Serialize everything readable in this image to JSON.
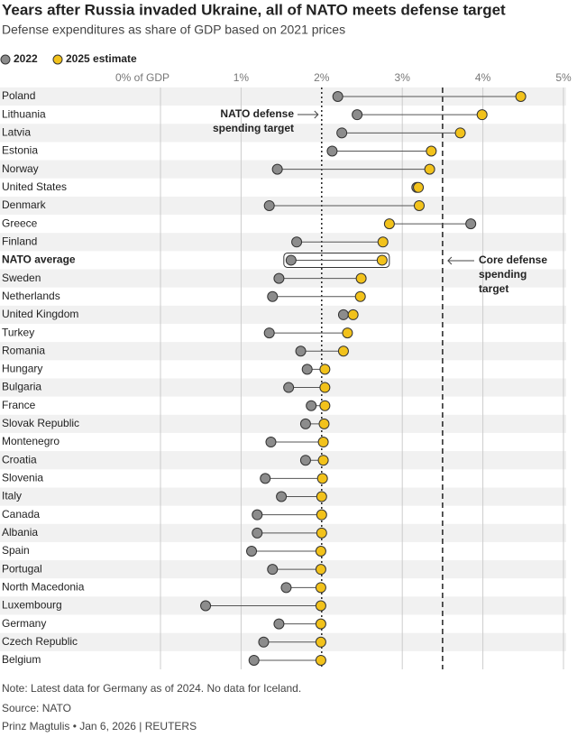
{
  "chart_data": {
    "type": "dumbbell",
    "title": "Years after Russia invaded Ukraine, all of NATO meets defense target",
    "subtitle": "Defense expenditures as share of GDP based on 2021 prices",
    "categories": [
      "Poland",
      "Lithuania",
      "Latvia",
      "Estonia",
      "Norway",
      "United States",
      "Denmark",
      "Greece",
      "Finland",
      "NATO average",
      "Sweden",
      "Netherlands",
      "United Kingdom",
      "Turkey",
      "Romania",
      "Hungary",
      "Bulgaria",
      "France",
      "Slovak Republic",
      "Montenegro",
      "Croatia",
      "Slovenia",
      "Italy",
      "Canada",
      "Albania",
      "Spain",
      "Portugal",
      "North Macedonia",
      "Luxembourg",
      "Germany",
      "Czech Republic",
      "Belgium"
    ],
    "series": [
      {
        "name": "2022",
        "color": "#8c8c8c",
        "values": [
          2.2,
          2.44,
          2.25,
          2.13,
          1.45,
          3.18,
          1.35,
          3.85,
          1.69,
          1.62,
          1.47,
          1.39,
          2.27,
          1.35,
          1.74,
          1.82,
          1.59,
          1.87,
          1.8,
          1.37,
          1.8,
          1.3,
          1.5,
          1.2,
          1.2,
          1.13,
          1.39,
          1.56,
          0.56,
          1.47,
          1.28,
          1.16
        ]
      },
      {
        "name": "2025 estimate",
        "color": "#f2c21b",
        "values": [
          4.47,
          3.99,
          3.72,
          3.36,
          3.34,
          3.2,
          3.21,
          2.84,
          2.76,
          2.75,
          2.49,
          2.48,
          2.39,
          2.32,
          2.27,
          2.04,
          2.04,
          2.04,
          2.03,
          2.02,
          2.02,
          2.01,
          2.0,
          2.0,
          2.0,
          1.99,
          1.99,
          1.99,
          1.99,
          1.99,
          1.99,
          1.99
        ]
      }
    ],
    "highlight": 9,
    "xlim": [
      0,
      5
    ],
    "xticks": [
      {
        "value": 0,
        "label": "0% of GDP"
      },
      {
        "value": 1,
        "label": "1%"
      },
      {
        "value": 2,
        "label": "2%"
      },
      {
        "value": 3,
        "label": "3%"
      },
      {
        "value": 4,
        "label": "4%"
      },
      {
        "value": 5,
        "label": "5%"
      }
    ],
    "grid": true,
    "reference_lines": [
      {
        "value": 2,
        "style": "dotted",
        "lines": [
          "NATO defense",
          "spending target"
        ]
      },
      {
        "value": 3.5,
        "style": "dashed",
        "lines": [
          "Core defense",
          "spending",
          "target"
        ]
      }
    ],
    "note": "Note: Latest data for Germany as of 2024. No data for Iceland.",
    "source": "Source: NATO",
    "byline": "Prinz Magtulis • Jan 6, 2026 | REUTERS"
  }
}
